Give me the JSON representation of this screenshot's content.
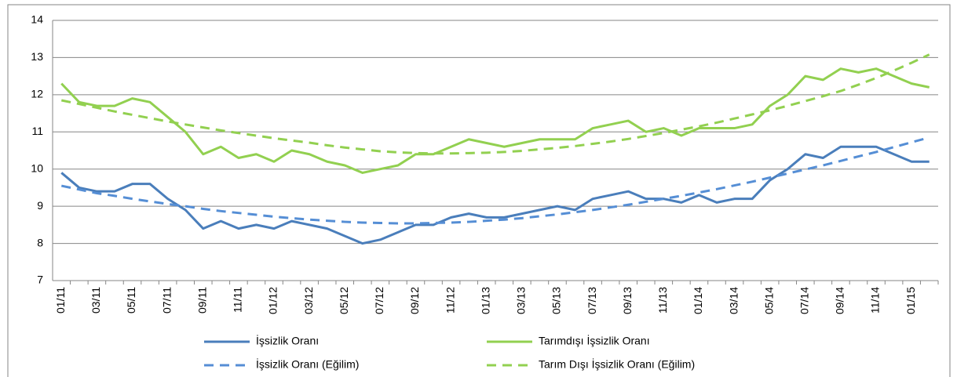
{
  "chart_data": {
    "type": "line",
    "categories": [
      "01/11",
      null,
      "03/11",
      null,
      "05/11",
      null,
      "07/11",
      null,
      "09/11",
      null,
      "11/11",
      null,
      "01/12",
      null,
      "03/12",
      null,
      "05/12",
      null,
      "07/12",
      null,
      "09/12",
      null,
      "11/12",
      null,
      "01/13",
      null,
      "03/13",
      null,
      "05/13",
      null,
      "07/13",
      null,
      "09/13",
      null,
      "11/13",
      null,
      "01/14",
      null,
      "03/14",
      null,
      "05/14",
      null,
      "07/14",
      null,
      "09/14",
      null,
      "11/14",
      null,
      "01/15",
      null
    ],
    "ylim": [
      7,
      14
    ],
    "yticks": [
      7,
      8,
      9,
      10,
      11,
      12,
      13,
      14
    ],
    "grid": true,
    "legend": "bottom",
    "series": [
      {
        "name": "İşsizlik Oranı",
        "color": "#4a7ebb",
        "dashed": false,
        "values": [
          9.9,
          9.5,
          9.4,
          9.4,
          9.6,
          9.6,
          9.2,
          8.9,
          8.4,
          8.6,
          8.4,
          8.5,
          8.4,
          8.6,
          8.5,
          8.4,
          8.2,
          8.0,
          8.1,
          8.3,
          8.5,
          8.5,
          8.7,
          8.8,
          8.7,
          8.7,
          8.8,
          8.9,
          9.0,
          8.9,
          9.2,
          9.3,
          9.4,
          9.2,
          9.2,
          9.1,
          9.3,
          9.1,
          9.2,
          9.2,
          9.7,
          10.0,
          10.4,
          10.3,
          10.6,
          10.6,
          10.6,
          10.4,
          10.2,
          10.2
        ]
      },
      {
        "name": "Tarımdışı İşsizlik Oranı",
        "color": "#92d050",
        "dashed": false,
        "values": [
          12.3,
          11.8,
          11.7,
          11.7,
          11.9,
          11.8,
          11.4,
          11.0,
          10.4,
          10.6,
          10.3,
          10.4,
          10.2,
          10.5,
          10.4,
          10.2,
          10.1,
          9.9,
          10.0,
          10.1,
          10.4,
          10.4,
          10.6,
          10.8,
          10.7,
          10.6,
          10.7,
          10.8,
          10.8,
          10.8,
          11.1,
          11.2,
          11.3,
          11.0,
          11.1,
          10.9,
          11.1,
          11.1,
          11.1,
          11.2,
          11.7,
          12.0,
          12.5,
          12.4,
          12.7,
          12.6,
          12.7,
          12.5,
          12.3,
          12.2
        ]
      },
      {
        "name": "İşsizlik Oranı (Eğilim)",
        "color": "#558ed5",
        "dashed": true,
        "values": [
          9.55,
          9.45,
          9.35,
          9.28,
          9.2,
          9.13,
          9.06,
          9.0,
          8.93,
          8.87,
          8.82,
          8.77,
          8.72,
          8.68,
          8.64,
          8.61,
          8.58,
          8.56,
          8.55,
          8.54,
          8.54,
          8.55,
          8.56,
          8.58,
          8.61,
          8.64,
          8.68,
          8.73,
          8.78,
          8.84,
          8.9,
          8.97,
          9.04,
          9.12,
          9.2,
          9.28,
          9.37,
          9.46,
          9.56,
          9.66,
          9.77,
          9.88,
          9.99,
          10.1,
          10.22,
          10.34,
          10.46,
          10.59,
          10.72,
          10.85
        ]
      },
      {
        "name": "Tarım Dışı İşsizlik Oranı (Eğilim)",
        "color": "#92d050",
        "dashed": true,
        "values": [
          11.85,
          11.75,
          11.65,
          11.55,
          11.46,
          11.37,
          11.28,
          11.2,
          11.12,
          11.04,
          10.97,
          10.9,
          10.83,
          10.77,
          10.71,
          10.64,
          10.58,
          10.53,
          10.48,
          10.45,
          10.43,
          10.42,
          10.42,
          10.43,
          10.44,
          10.46,
          10.49,
          10.53,
          10.57,
          10.62,
          10.68,
          10.74,
          10.81,
          10.89,
          10.97,
          11.06,
          11.15,
          11.25,
          11.36,
          11.47,
          11.58,
          11.7,
          11.83,
          11.96,
          12.1,
          12.27,
          12.45,
          12.65,
          12.86,
          13.08
        ]
      }
    ]
  }
}
